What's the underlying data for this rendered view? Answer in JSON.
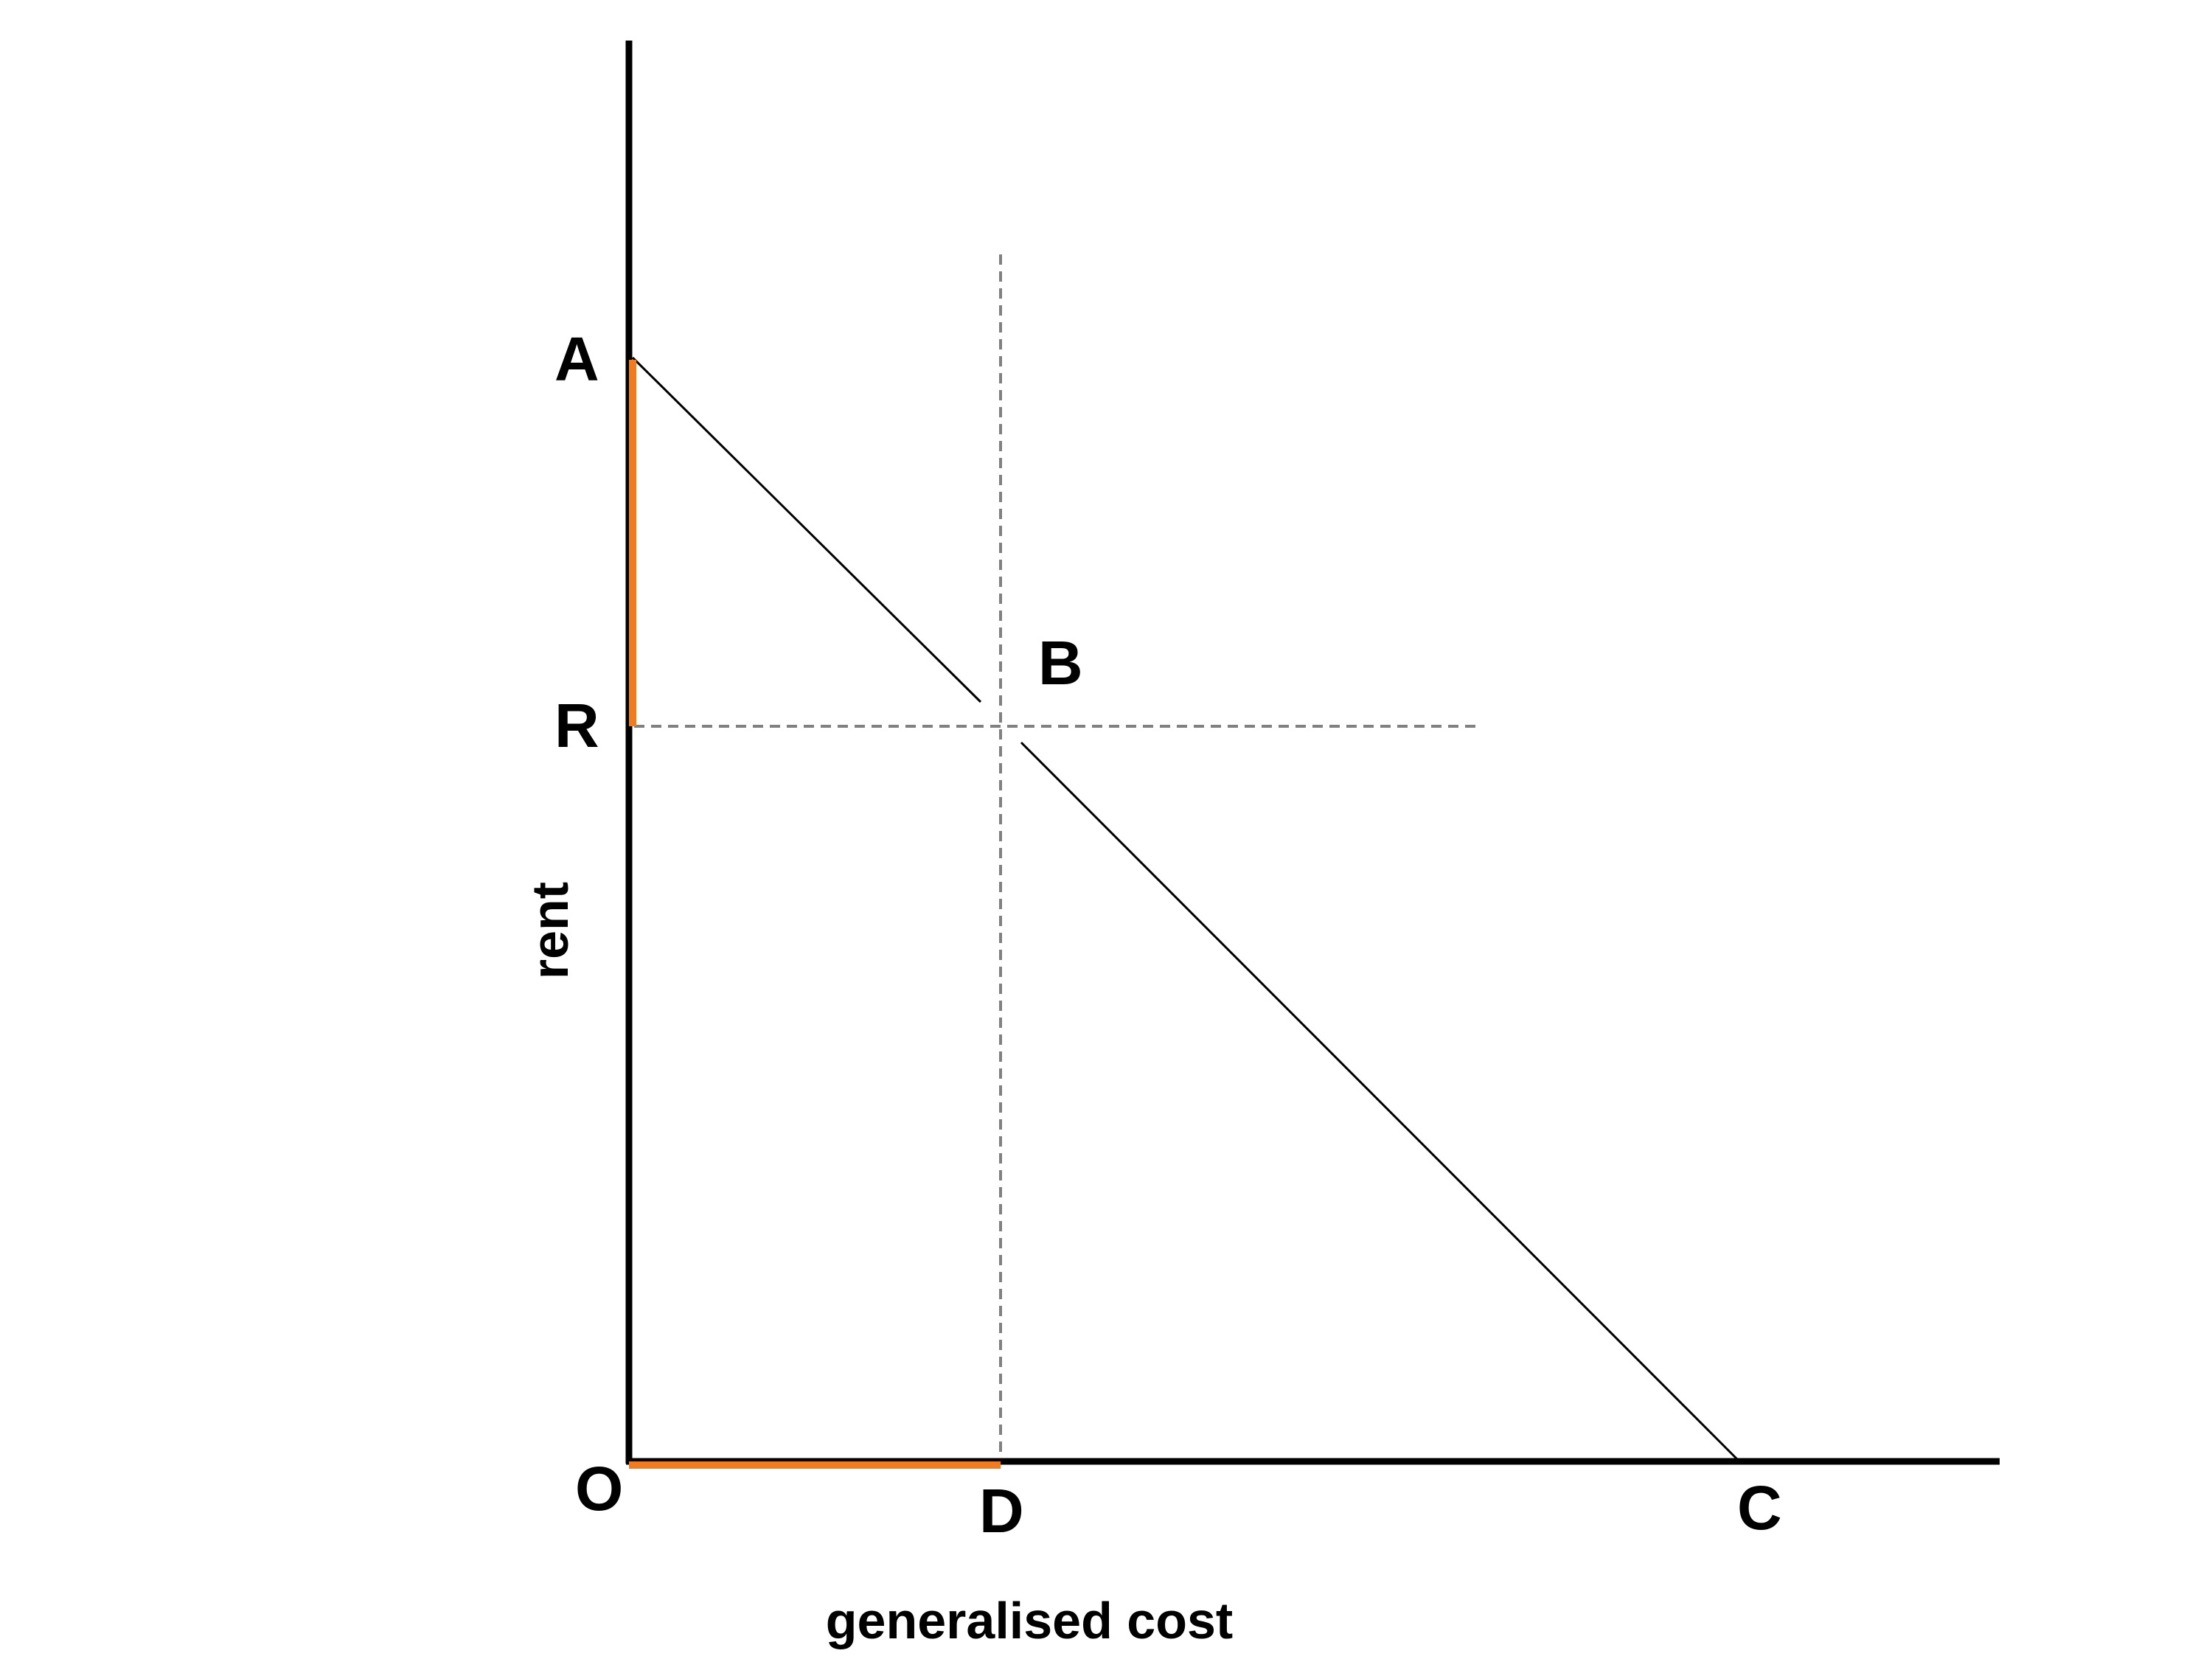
{
  "diagram": {
    "points": {
      "A": "A",
      "B": "B",
      "R": "R",
      "O": "O",
      "D": "D",
      "C": "C"
    },
    "axes": {
      "x_title": "generalised cost",
      "y_title": "rent"
    },
    "colors": {
      "axis": "#000000",
      "line": "#000000",
      "guide": "#808080",
      "highlight": "#f07b20",
      "background": "#ffffff"
    }
  }
}
